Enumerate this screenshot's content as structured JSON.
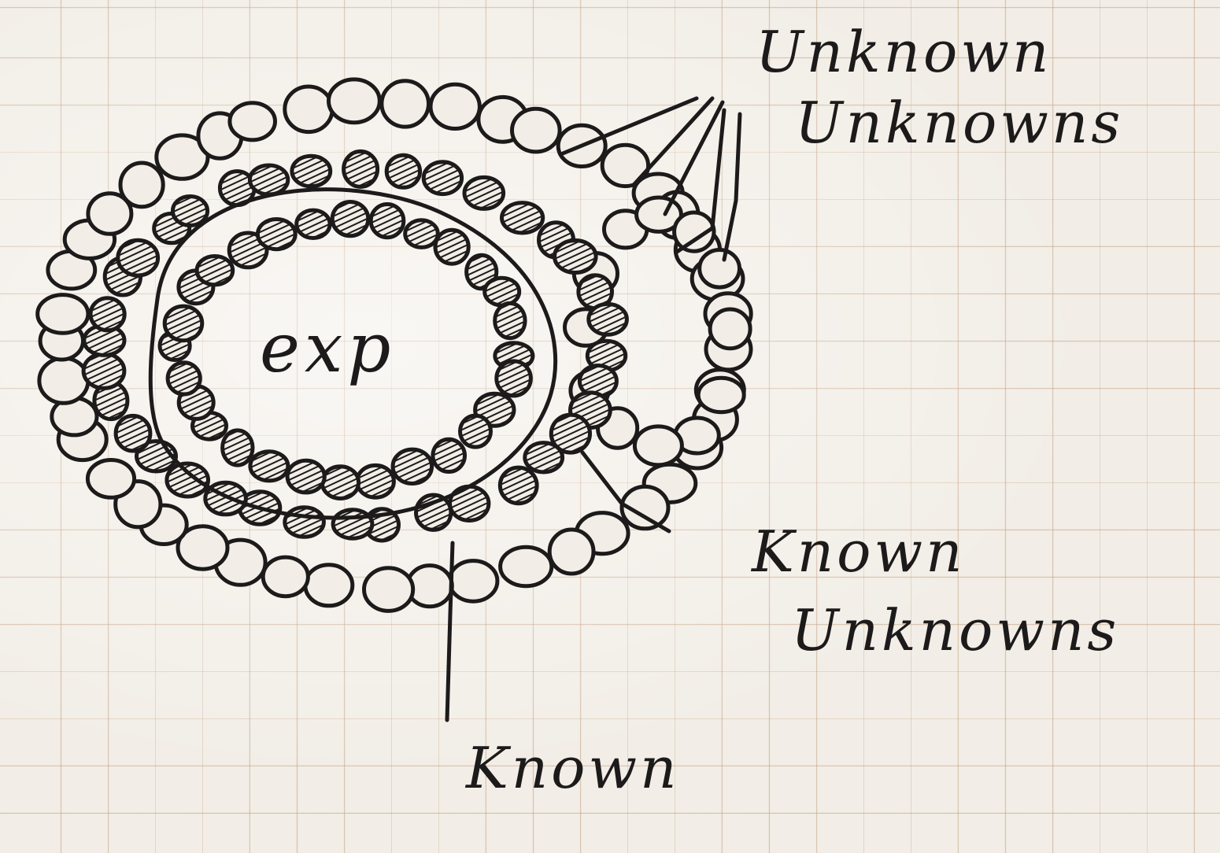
{
  "diagram": {
    "center_label": "exp",
    "labels": {
      "unknown_unknowns": [
        "Unknown",
        "Unknowns"
      ],
      "known_unknowns": [
        "Known",
        "Unknowns"
      ],
      "known": "Known"
    },
    "rings": {
      "inner": {
        "name": "known",
        "filled": true
      },
      "middle": {
        "name": "known-unknowns",
        "filled": true
      },
      "outer": {
        "name": "unknown-unknowns",
        "filled": false
      }
    },
    "colors": {
      "ink": "#1c1a1a",
      "paper": "#f2eee7",
      "grid": "#c4a082"
    }
  }
}
